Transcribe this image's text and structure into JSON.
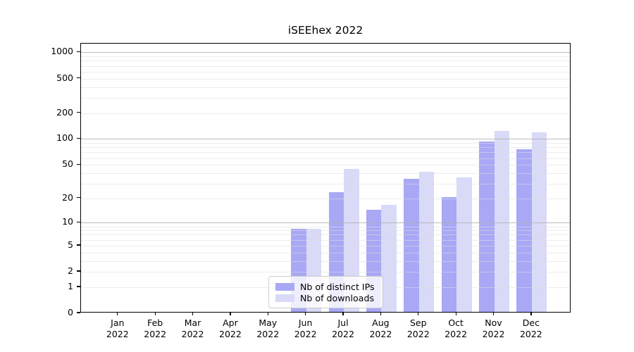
{
  "title": "iSEEhex 2022",
  "legend": {
    "items": [
      {
        "label": "Nb of distinct IPs",
        "color": "#a8a8f5"
      },
      {
        "label": "Nb of downloads",
        "color": "#d9d9f8"
      }
    ]
  },
  "chart_data": {
    "type": "bar",
    "title": "iSEEhex 2022",
    "categories": [
      "Jan",
      "Feb",
      "Mar",
      "Apr",
      "May",
      "Jun",
      "Jul",
      "Aug",
      "Sep",
      "Oct",
      "Nov",
      "Dec"
    ],
    "category_year": "2022",
    "series": [
      {
        "name": "Nb of distinct IPs",
        "color": "#a8a8f5",
        "values": [
          0,
          0,
          0,
          0,
          0,
          8,
          23,
          14,
          33,
          20,
          90,
          73
        ]
      },
      {
        "name": "Nb of downloads",
        "color": "#d9d9f8",
        "values": [
          0,
          0,
          0,
          0,
          0,
          8,
          43,
          16,
          40,
          34,
          120,
          115
        ]
      }
    ],
    "yscale": "log1p",
    "y_ticks": [
      0,
      1,
      2,
      5,
      10,
      20,
      50,
      100,
      200,
      500,
      1000
    ],
    "y_major_gridlines": [
      10,
      100,
      1000
    ],
    "y_minor_gridlines": [
      1,
      2,
      3,
      4,
      5,
      6,
      7,
      8,
      9,
      20,
      30,
      40,
      50,
      60,
      70,
      80,
      90,
      200,
      300,
      400,
      500,
      600,
      700,
      800,
      900
    ],
    "ylim": [
      0,
      1260
    ],
    "xlabel": "",
    "ylabel": "",
    "grid": true,
    "legend_position": "lower center"
  }
}
